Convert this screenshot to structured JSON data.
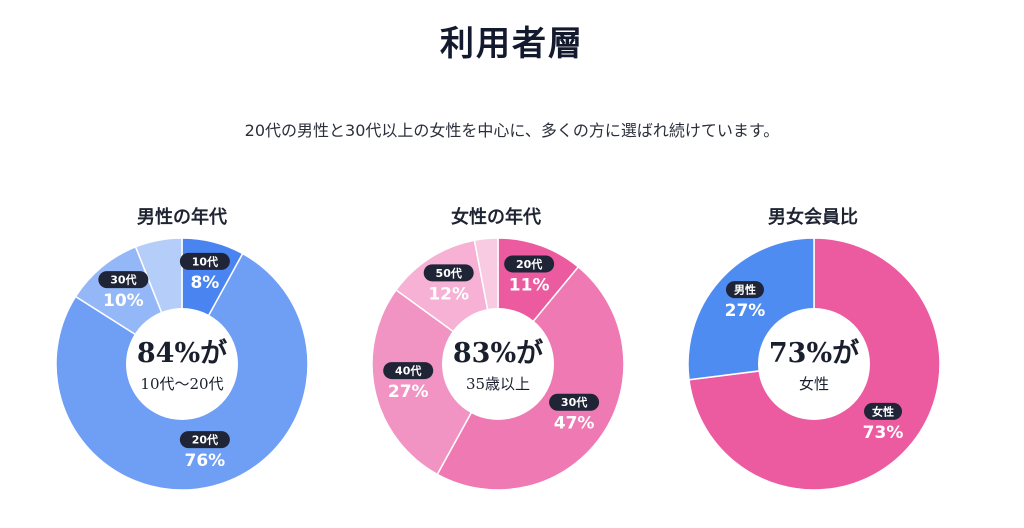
{
  "title": "利用者層",
  "subtitle": "20代の男性と30代以上の女性を中心に、多くの方に選ばれ続けています。",
  "chart_data": [
    {
      "type": "pie",
      "title": "男性の年代",
      "center_value": "84%が",
      "center_text": "10代〜20代",
      "slices": [
        {
          "label": "10代",
          "value": 8,
          "value_label": "8%",
          "color": "#4a84f0",
          "labeled": true
        },
        {
          "label": "20代",
          "value": 76,
          "value_label": "76%",
          "color": "#6f9ef5",
          "labeled": true
        },
        {
          "label": "30代",
          "value": 10,
          "value_label": "10%",
          "color": "#93b7f7",
          "labeled": true
        },
        {
          "label": "",
          "value": 6,
          "value_label": "",
          "color": "#b5cdf9",
          "labeled": false
        }
      ]
    },
    {
      "type": "pie",
      "title": "女性の年代",
      "center_value": "83%が",
      "center_text": "35歳以上",
      "slices": [
        {
          "label": "20代",
          "value": 11,
          "value_label": "11%",
          "color": "#ec5aa0",
          "labeled": true
        },
        {
          "label": "30代",
          "value": 47,
          "value_label": "47%",
          "color": "#ef79b2",
          "labeled": true
        },
        {
          "label": "40代",
          "value": 27,
          "value_label": "27%",
          "color": "#f294c3",
          "labeled": true
        },
        {
          "label": "50代",
          "value": 12,
          "value_label": "12%",
          "color": "#f6b1d4",
          "labeled": true
        },
        {
          "label": "",
          "value": 3,
          "value_label": "",
          "color": "#f9cbe2",
          "labeled": false
        }
      ]
    },
    {
      "type": "pie",
      "title": "男女会員比",
      "center_value": "73%が",
      "center_text": "女性",
      "slices": [
        {
          "label": "女性",
          "value": 73,
          "value_label": "73%",
          "color": "#ec5aa0",
          "labeled": true
        },
        {
          "label": "男性",
          "value": 27,
          "value_label": "27%",
          "color": "#4f8cf2",
          "labeled": true
        }
      ]
    }
  ]
}
